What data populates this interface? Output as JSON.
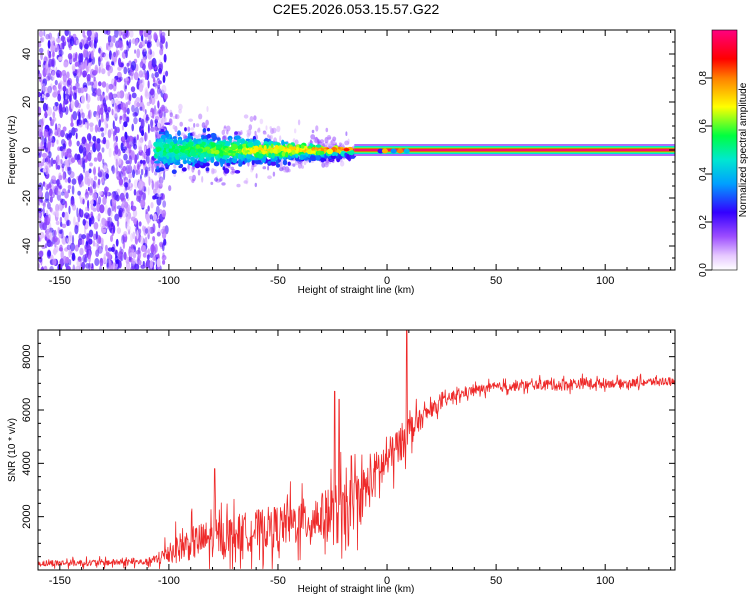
{
  "figure_title": "C2E5.2026.053.15.57.G22",
  "colors": {
    "snr_line": "#ee2a2a",
    "axis": "#000000",
    "background": "#ffffff"
  },
  "chart_data": [
    {
      "type": "heatmap",
      "title": "C2E5.2026.053.15.57.G22",
      "xlabel": "Height of straight line (km)",
      "ylabel": "Frequency (Hz)",
      "xlim": [
        -160,
        132
      ],
      "ylim": [
        -50,
        50
      ],
      "x_ticks": [
        -150,
        -100,
        -50,
        0,
        50,
        100
      ],
      "y_ticks": [
        -40,
        -20,
        0,
        20,
        40
      ],
      "colorbar": {
        "label": "Normalized spectral amplitude",
        "range": [
          0,
          1
        ],
        "ticks": [
          0.0,
          0.2,
          0.4,
          0.6,
          0.8
        ],
        "colormap": "rainbow (white-purple-blue-cyan-green-yellow-red-magenta)"
      },
      "description_features": {
        "noise_region_x": [
          -160,
          -101
        ],
        "noise_amplitude": 0.2,
        "onset_x": -106,
        "band_center_hz": 0,
        "scatter_band_x": [
          -106,
          -15
        ],
        "clean_tone_x": [
          -15,
          132
        ],
        "clean_tone_amplitude": 1.0
      }
    },
    {
      "type": "line",
      "xlabel": "Height of straight line (km)",
      "ylabel": "SNR (10 * v/v)",
      "xlim": [
        -160,
        132
      ],
      "ylim": [
        0,
        9000
      ],
      "x_ticks": [
        -150,
        -100,
        -50,
        0,
        50,
        100
      ],
      "y_ticks": [
        2000,
        4000,
        6000,
        8000
      ],
      "series": [
        {
          "name": "SNR",
          "envelope_x": [
            -160,
            -110,
            -105,
            -100,
            -90,
            -80,
            -70,
            -60,
            -50,
            -40,
            -30,
            -24,
            -20,
            -15,
            -10,
            -5,
            0,
            5,
            10,
            15,
            20,
            30,
            40,
            50,
            60,
            70,
            80,
            90,
            100,
            110,
            120,
            132
          ],
          "envelope_mean": [
            250,
            300,
            400,
            700,
            1000,
            1200,
            1350,
            1500,
            1650,
            1800,
            2000,
            2100,
            1700,
            2600,
            3000,
            3600,
            4100,
            4600,
            5200,
            5600,
            6000,
            6500,
            6750,
            6850,
            6900,
            6950,
            6950,
            7000,
            7000,
            7000,
            7050,
            7100
          ],
          "envelope_spread": [
            150,
            150,
            300,
            600,
            800,
            900,
            900,
            950,
            1000,
            1050,
            1100,
            1500,
            1800,
            1300,
            1200,
            1100,
            1000,
            900,
            800,
            500,
            350,
            250,
            220,
            220,
            220,
            220,
            300,
            250,
            200,
            200,
            200,
            200
          ],
          "peaks": [
            {
              "x": -79,
              "y": 3800
            },
            {
              "x": -24,
              "y": 6700
            },
            {
              "x": -22,
              "y": 6400
            },
            {
              "x": 9,
              "y": 9200
            }
          ]
        }
      ]
    }
  ]
}
